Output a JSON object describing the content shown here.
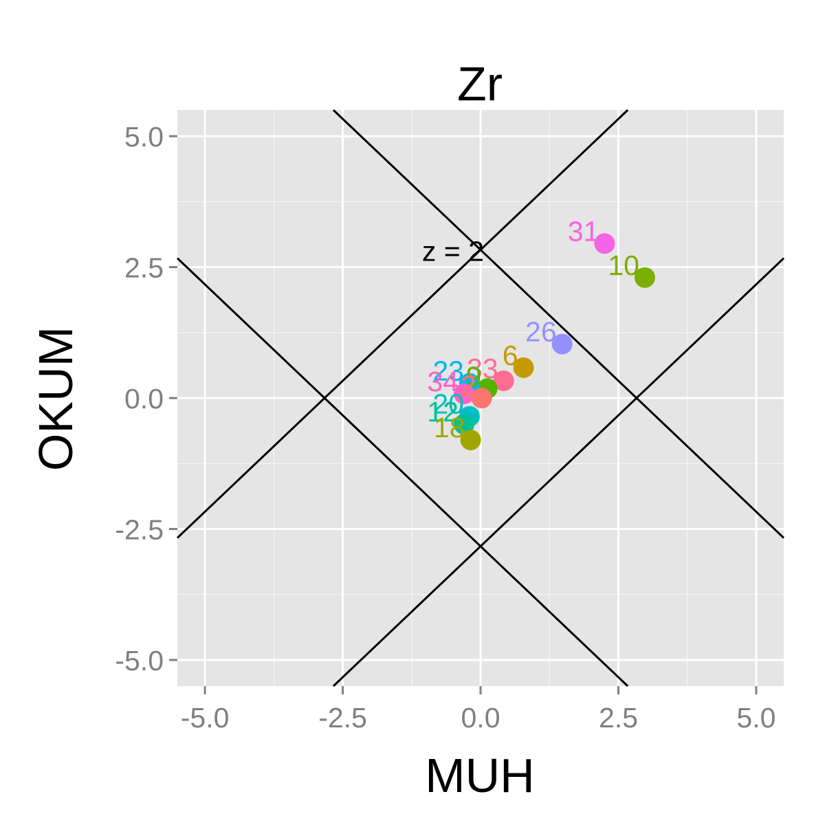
{
  "chart_data": {
    "type": "scatter",
    "title": "Zr",
    "xlabel": "MUH",
    "ylabel": "OKUM",
    "xlim": [
      -5.5,
      5.5
    ],
    "ylim": [
      -5.5,
      5.5
    ],
    "x_ticks": [
      "-5.0",
      "-2.5",
      "0.0",
      "2.5",
      "5.0"
    ],
    "y_ticks": [
      "5.0",
      "2.5",
      "0.0",
      "-2.5",
      "-5.0"
    ],
    "x_tick_values": [
      -5,
      -2.5,
      0,
      2.5,
      5
    ],
    "y_tick_values": [
      5,
      2.5,
      0,
      -2.5,
      -5
    ],
    "grid": true,
    "background": "#e5e5e5",
    "reference_lines": [
      {
        "slope": 1,
        "intercept": 2.83
      },
      {
        "slope": 1,
        "intercept": -2.83
      },
      {
        "slope": -1,
        "intercept": 2.83
      },
      {
        "slope": -1,
        "intercept": -2.83
      }
    ],
    "annotation": {
      "text": "z = 2",
      "x": -0.5,
      "y": 2.8
    },
    "points": [
      {
        "label": "31",
        "x": 2.25,
        "y": 2.95,
        "color": "#f564e3"
      },
      {
        "label": "10",
        "x": 2.98,
        "y": 2.3,
        "color": "#7cae00"
      },
      {
        "label": "26",
        "x": 1.48,
        "y": 1.03,
        "color": "#9590ff"
      },
      {
        "label": "6",
        "x": 0.78,
        "y": 0.58,
        "color": "#c49a00"
      },
      {
        "label": "33",
        "x": 0.42,
        "y": 0.33,
        "color": "#ff6c91"
      },
      {
        "label": "9",
        "x": 0.12,
        "y": 0.18,
        "color": "#53b400"
      },
      {
        "label": "23",
        "x": -0.2,
        "y": 0.28,
        "color": "#00b6eb"
      },
      {
        "label": "34",
        "x": -0.3,
        "y": 0.08,
        "color": "#ff61c3"
      },
      {
        "label": "2",
        "x": 0.02,
        "y": 0.0,
        "color": "#f8766d"
      },
      {
        "label": "20",
        "x": -0.2,
        "y": -0.35,
        "color": "#00bfc4"
      },
      {
        "label": "12",
        "x": -0.3,
        "y": -0.5,
        "color": "#00c094"
      },
      {
        "label": "18",
        "x": -0.18,
        "y": -0.8,
        "color": "#a3a500"
      }
    ]
  }
}
